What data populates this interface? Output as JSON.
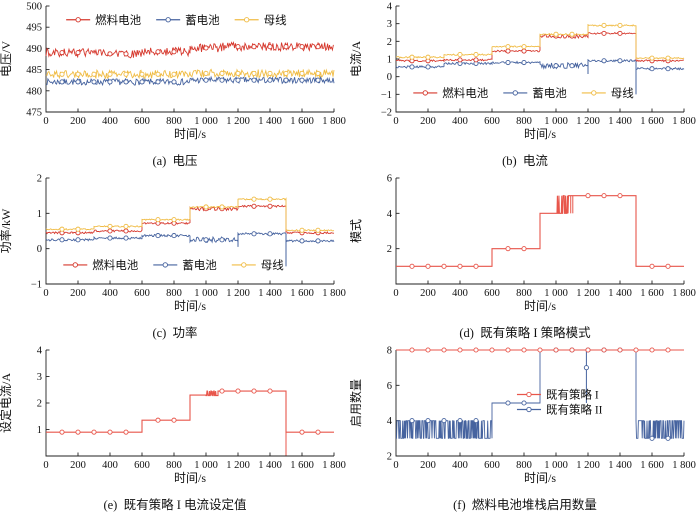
{
  "figure_title": "",
  "accent_colors": {
    "fuel_cell_red": "#d6392e",
    "battery_blue": "#46639f",
    "bus_yellow": "#f0bc45",
    "axis_black": "#222222"
  },
  "chart_data": [
    {
      "id": "a",
      "type": "line",
      "caption": "(a)  电压",
      "xlabel": "时间/s",
      "ylabel": "电压/V",
      "xlim": [
        0,
        1800
      ],
      "ylim": [
        475,
        500
      ],
      "xticks": [
        0,
        200,
        400,
        600,
        800,
        1000,
        1200,
        1400,
        1600,
        1800
      ],
      "xtick_labels": [
        "0",
        "200",
        "400",
        "600",
        "800",
        "1 000",
        "1 200",
        "1 400",
        "1 600",
        "1 800"
      ],
      "yticks": [
        475,
        480,
        485,
        490,
        495,
        500
      ],
      "ytick_labels": [
        "475",
        "480",
        "485",
        "490",
        "495",
        "500"
      ],
      "legend": {
        "x": 0.07,
        "y": 0.13,
        "dir": "row",
        "items": [
          {
            "label": "燃料电池",
            "color": "#d6392e"
          },
          {
            "label": "蓄电池",
            "color": "#46639f"
          },
          {
            "label": "母线",
            "color": "#f0bc45"
          }
        ]
      },
      "series": [
        {
          "name": "蓄电池",
          "color": "#46639f",
          "marker_step": 100,
          "segments": [
            {
              "x0": 0,
              "x1": 900,
              "y": 482.1,
              "noise": 0.75
            },
            {
              "x0": 900,
              "x1": 1800,
              "y": 482.5,
              "noise": 0.75
            }
          ]
        },
        {
          "name": "母线",
          "color": "#f0bc45",
          "marker_step": 100,
          "segments": [
            {
              "x0": 0,
              "x1": 900,
              "y": 483.9,
              "noise": 0.95
            },
            {
              "x0": 900,
              "x1": 1800,
              "y": 484.1,
              "noise": 0.95
            }
          ]
        },
        {
          "name": "燃料电池",
          "color": "#d6392e",
          "marker_step": 100,
          "segments": [
            {
              "x0": 0,
              "x1": 300,
              "y": 489.0,
              "noise": 1.0
            },
            {
              "x0": 300,
              "x1": 600,
              "y": 488.7,
              "noise": 1.0
            },
            {
              "x0": 600,
              "x1": 900,
              "y": 489.2,
              "noise": 1.0
            },
            {
              "x0": 900,
              "x1": 1100,
              "y": 490.1,
              "noise": 1.0
            },
            {
              "x0": 1100,
              "x1": 1800,
              "y": 490.4,
              "noise": 1.0
            }
          ]
        }
      ]
    },
    {
      "id": "b",
      "type": "line",
      "caption": "(b)  电流",
      "xlabel": "时间/s",
      "ylabel": "电流/A",
      "xlim": [
        0,
        1800
      ],
      "ylim": [
        -2,
        4
      ],
      "xticks": [
        0,
        200,
        400,
        600,
        800,
        1000,
        1200,
        1400,
        1600,
        1800
      ],
      "xtick_labels": [
        "0",
        "200",
        "400",
        "600",
        "800",
        "1 000",
        "1 200",
        "1 400",
        "1 600",
        "1 800"
      ],
      "yticks": [
        -2,
        -1,
        0,
        1,
        2,
        3,
        4
      ],
      "ytick_labels": [
        "−2",
        "−1",
        "0",
        "1",
        "2",
        "3",
        "4"
      ],
      "legend": {
        "x": 0.06,
        "y": 0.82,
        "dir": "row",
        "items": [
          {
            "label": "燃料电池",
            "color": "#d6392e"
          },
          {
            "label": "蓄电池",
            "color": "#46639f"
          },
          {
            "label": "母线",
            "color": "#f0bc45"
          }
        ]
      },
      "series": [
        {
          "name": "蓄电池",
          "color": "#46639f",
          "marker_step": 100,
          "spikes": [
            {
              "x": 1200,
              "from": 0.9,
              "to": 0.15
            },
            {
              "x": 1500,
              "from": 0.9,
              "to": -1.0
            }
          ],
          "segments": [
            {
              "x0": 0,
              "x1": 300,
              "y": 0.55,
              "noise": 0.06
            },
            {
              "x0": 300,
              "x1": 600,
              "y": 0.75,
              "noise": 0.06
            },
            {
              "x0": 600,
              "x1": 900,
              "y": 0.8,
              "noise": 0.06
            },
            {
              "x0": 900,
              "x1": 1200,
              "y": 0.62,
              "noise": 0.17
            },
            {
              "x0": 1200,
              "x1": 1500,
              "y": 0.9,
              "noise": 0.06
            },
            {
              "x0": 1500,
              "x1": 1800,
              "y": 0.45,
              "noise": 0.06
            }
          ]
        },
        {
          "name": "燃料电池",
          "color": "#d6392e",
          "marker_step": 100,
          "segments": [
            {
              "x0": 0,
              "x1": 300,
              "y": 0.9,
              "noise": 0.05
            },
            {
              "x0": 300,
              "x1": 600,
              "y": 0.95,
              "noise": 0.05
            },
            {
              "x0": 600,
              "x1": 900,
              "y": 1.45,
              "noise": 0.05
            },
            {
              "x0": 900,
              "x1": 1200,
              "y": 2.3,
              "noise": 0.12
            },
            {
              "x0": 1200,
              "x1": 1500,
              "y": 2.45,
              "noise": 0.05
            },
            {
              "x0": 1500,
              "x1": 1800,
              "y": 0.9,
              "noise": 0.05
            }
          ]
        },
        {
          "name": "母线",
          "color": "#f0bc45",
          "marker_step": 100,
          "segments": [
            {
              "x0": 0,
              "x1": 300,
              "y": 1.1,
              "noise": 0.04
            },
            {
              "x0": 300,
              "x1": 600,
              "y": 1.25,
              "noise": 0.04
            },
            {
              "x0": 600,
              "x1": 900,
              "y": 1.7,
              "noise": 0.04
            },
            {
              "x0": 900,
              "x1": 1200,
              "y": 2.4,
              "noise": 0.04
            },
            {
              "x0": 1200,
              "x1": 1500,
              "y": 2.9,
              "noise": 0.04
            },
            {
              "x0": 1500,
              "x1": 1800,
              "y": 1.05,
              "noise": 0.04
            }
          ]
        }
      ]
    },
    {
      "id": "c",
      "type": "line",
      "caption": "(c)  功率",
      "xlabel": "时间/s",
      "ylabel": "功率/kW",
      "xlim": [
        0,
        1800
      ],
      "ylim": [
        -1,
        2
      ],
      "xticks": [
        0,
        200,
        400,
        600,
        800,
        1000,
        1200,
        1400,
        1600,
        1800
      ],
      "xtick_labels": [
        "0",
        "200",
        "400",
        "600",
        "800",
        "1 000",
        "1 200",
        "1 400",
        "1 600",
        "1 800"
      ],
      "yticks": [
        -1,
        0,
        1,
        2
      ],
      "ytick_labels": [
        "−1",
        "0",
        "1",
        "2"
      ],
      "legend": {
        "x": 0.06,
        "y": 0.82,
        "dir": "row",
        "items": [
          {
            "label": "燃料电池",
            "color": "#d6392e"
          },
          {
            "label": "蓄电池",
            "color": "#46639f"
          },
          {
            "label": "母线",
            "color": "#f0bc45"
          }
        ]
      },
      "series": [
        {
          "name": "蓄电池",
          "color": "#46639f",
          "marker_step": 100,
          "spikes": [
            {
              "x": 1200,
              "from": 0.42,
              "to": 0.05
            },
            {
              "x": 1500,
              "from": 0.42,
              "to": -0.5
            }
          ],
          "segments": [
            {
              "x0": 0,
              "x1": 300,
              "y": 0.25,
              "noise": 0.03
            },
            {
              "x0": 300,
              "x1": 600,
              "y": 0.3,
              "noise": 0.03
            },
            {
              "x0": 600,
              "x1": 900,
              "y": 0.37,
              "noise": 0.03
            },
            {
              "x0": 900,
              "x1": 1200,
              "y": 0.25,
              "noise": 0.08
            },
            {
              "x0": 1200,
              "x1": 1500,
              "y": 0.42,
              "noise": 0.03
            },
            {
              "x0": 1500,
              "x1": 1800,
              "y": 0.22,
              "noise": 0.03
            }
          ]
        },
        {
          "name": "燃料电池",
          "color": "#d6392e",
          "marker_step": 100,
          "segments": [
            {
              "x0": 0,
              "x1": 300,
              "y": 0.45,
              "noise": 0.025
            },
            {
              "x0": 300,
              "x1": 600,
              "y": 0.5,
              "noise": 0.025
            },
            {
              "x0": 600,
              "x1": 900,
              "y": 0.72,
              "noise": 0.025
            },
            {
              "x0": 900,
              "x1": 1200,
              "y": 1.13,
              "noise": 0.05
            },
            {
              "x0": 1200,
              "x1": 1500,
              "y": 1.2,
              "noise": 0.025
            },
            {
              "x0": 1500,
              "x1": 1800,
              "y": 0.45,
              "noise": 0.025
            }
          ]
        },
        {
          "name": "母线",
          "color": "#f0bc45",
          "marker_step": 100,
          "segments": [
            {
              "x0": 0,
              "x1": 300,
              "y": 0.55,
              "noise": 0.02
            },
            {
              "x0": 300,
              "x1": 600,
              "y": 0.63,
              "noise": 0.02
            },
            {
              "x0": 600,
              "x1": 900,
              "y": 0.82,
              "noise": 0.02
            },
            {
              "x0": 900,
              "x1": 1200,
              "y": 1.18,
              "noise": 0.02
            },
            {
              "x0": 1200,
              "x1": 1500,
              "y": 1.4,
              "noise": 0.02
            },
            {
              "x0": 1500,
              "x1": 1800,
              "y": 0.52,
              "noise": 0.02
            }
          ]
        }
      ]
    },
    {
      "id": "d",
      "type": "line",
      "caption": "(d)  既有策略 I 策略模式",
      "xlabel": "时间/s",
      "ylabel": "模式",
      "xlim": [
        0,
        1800
      ],
      "ylim": [
        0,
        6
      ],
      "xticks": [
        0,
        200,
        400,
        600,
        800,
        1000,
        1200,
        1400,
        1600,
        1800
      ],
      "xtick_labels": [
        "0",
        "200",
        "400",
        "600",
        "800",
        "1 000",
        "1 200",
        "1 400",
        "1 600",
        "1 800"
      ],
      "yticks": [
        0,
        2,
        4,
        6
      ],
      "ytick_labels": [
        "",
        "2",
        "4",
        "6"
      ],
      "series": [
        {
          "name": "既有策略 I",
          "color": "#e8564b",
          "marker_step": 100,
          "spikes": [
            {
              "x": 1092,
              "from": 5,
              "to": 4
            },
            {
              "x": 1105,
              "from": 5,
              "to": 4
            }
          ],
          "segments": [
            {
              "x0": 0,
              "x1": 600,
              "y": 1
            },
            {
              "x0": 600,
              "x1": 900,
              "y": 2
            },
            {
              "x0": 900,
              "x1": 1000,
              "y": 4
            },
            {
              "x0": 1000,
              "x1": 1085,
              "osc": [
                4,
                5
              ]
            },
            {
              "x0": 1085,
              "x1": 1500,
              "y": 5
            },
            {
              "x0": 1500,
              "x1": 1800,
              "y": 1
            }
          ]
        }
      ]
    },
    {
      "id": "e",
      "type": "line",
      "caption": "(e)  既有策略 I 电流设定值",
      "xlabel": "时间/s",
      "ylabel": "设定电流/A",
      "xlim": [
        0,
        1800
      ],
      "ylim": [
        0,
        4
      ],
      "xticks": [
        0,
        200,
        400,
        600,
        800,
        1000,
        1200,
        1400,
        1600,
        1800
      ],
      "xtick_labels": [
        "0",
        "200",
        "400",
        "600",
        "800",
        "1 000",
        "1 200",
        "1 400",
        "1 600",
        "1 800"
      ],
      "yticks": [
        0,
        1,
        2,
        3,
        4
      ],
      "ytick_labels": [
        "",
        "1",
        "2",
        "3",
        "4"
      ],
      "series": [
        {
          "name": "既有策略 I",
          "color": "#e8564b",
          "marker_step": 100,
          "spikes": [
            {
              "x": 1500,
              "from": 2.45,
              "to": 0.02
            }
          ],
          "segments": [
            {
              "x0": 0,
              "x1": 600,
              "y": 0.9
            },
            {
              "x0": 600,
              "x1": 900,
              "y": 1.35
            },
            {
              "x0": 900,
              "x1": 1000,
              "y": 2.3
            },
            {
              "x0": 1000,
              "x1": 1075,
              "osc": [
                2.28,
                2.45
              ]
            },
            {
              "x0": 1075,
              "x1": 1500,
              "y": 2.45
            },
            {
              "x0": 1500,
              "x1": 1800,
              "y": 0.9
            }
          ]
        }
      ]
    },
    {
      "id": "f",
      "type": "line",
      "caption": "(f)  燃料电池堆栈启用数量",
      "xlabel": "时间/s",
      "ylabel": "启用数量",
      "xlim": [
        0,
        1800
      ],
      "ylim": [
        2,
        8
      ],
      "xticks": [
        0,
        200,
        400,
        600,
        800,
        1000,
        1200,
        1400,
        1600,
        1800
      ],
      "xtick_labels": [
        "0",
        "200",
        "400",
        "600",
        "800",
        "1 000",
        "1 200",
        "1 400",
        "1 600",
        "1 800"
      ],
      "yticks": [
        2,
        4,
        6,
        8
      ],
      "ytick_labels": [
        "2",
        "4",
        "6",
        "8"
      ],
      "legend": {
        "x": 0.42,
        "y": 0.42,
        "dir": "col",
        "items": [
          {
            "label": "既有策略 I",
            "color": "#e8564b"
          },
          {
            "label": "既有策略 II",
            "color": "#46639f"
          }
        ]
      },
      "series": [
        {
          "name": "既有策略 II",
          "color": "#46639f",
          "marker_step": 100,
          "spikes": [
            {
              "x": 1190,
              "from": 8,
              "to": 5
            }
          ],
          "extra_markers": [
            [
              1190,
              7
            ]
          ],
          "segments": [
            {
              "x0": 0,
              "x1": 600,
              "osc": [
                3,
                4
              ],
              "marker_y": 4
            },
            {
              "x0": 600,
              "x1": 900,
              "y": 5
            },
            {
              "x0": 900,
              "x1": 1500,
              "y": 8
            },
            {
              "x0": 1500,
              "x1": 1800,
              "osc": [
                3,
                4
              ],
              "marker_y": 3
            }
          ]
        },
        {
          "name": "既有策略 I",
          "color": "#e8564b",
          "marker_step": 100,
          "segments": [
            {
              "x0": 0,
              "x1": 1800,
              "y": 8
            }
          ]
        }
      ]
    }
  ]
}
